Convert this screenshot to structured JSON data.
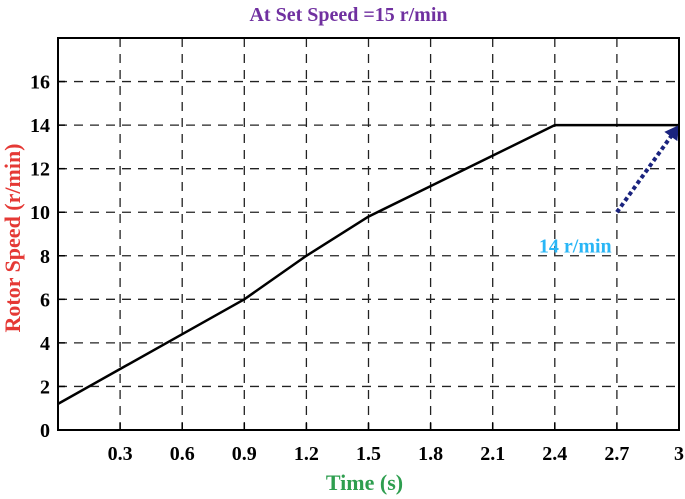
{
  "chart_data": {
    "type": "line",
    "title": "At Set Speed =15 r/min",
    "xlabel": "Time (s)",
    "ylabel": "Rotor Speed (r/min)",
    "xlim": [
      0,
      3
    ],
    "ylim": [
      0,
      18
    ],
    "xticks": [
      0.3,
      0.6,
      0.9,
      1.2,
      1.5,
      1.8,
      2.1,
      2.4,
      2.7,
      3
    ],
    "xtick_labels": [
      "0.3",
      "0.6",
      "0.9",
      "1.2",
      "1.5",
      "1.8",
      "2.1",
      "2.4",
      "2.7",
      "3"
    ],
    "yticks": [
      0,
      2,
      4,
      6,
      8,
      10,
      12,
      14,
      16
    ],
    "ytick_labels": [
      "0",
      "2",
      "4",
      "6",
      "8",
      "10",
      "12",
      "14",
      "16"
    ],
    "grid": true,
    "grid_style": "dashed",
    "series": [
      {
        "x": [
          0,
          0.3,
          0.6,
          0.9,
          1.2,
          1.5,
          1.8,
          2.1,
          2.4,
          2.7,
          3.0
        ],
        "y": [
          1.2,
          2.8,
          4.4,
          6.0,
          8.0,
          9.8,
          11.2,
          12.6,
          14.0,
          14.0,
          14.0
        ],
        "color": "#000000"
      }
    ],
    "annotation": {
      "text": "14 r/min",
      "color": "#29b6f6",
      "arrow_color": "#1a237e",
      "arrow_from": [
        2.7,
        10.0
      ],
      "arrow_to": [
        3.0,
        14.0
      ],
      "text_at": [
        2.7,
        8.6
      ]
    },
    "colors": {
      "title": "#7030a0",
      "ylabel": "#e53935",
      "xlabel": "#2e9e4f"
    }
  }
}
